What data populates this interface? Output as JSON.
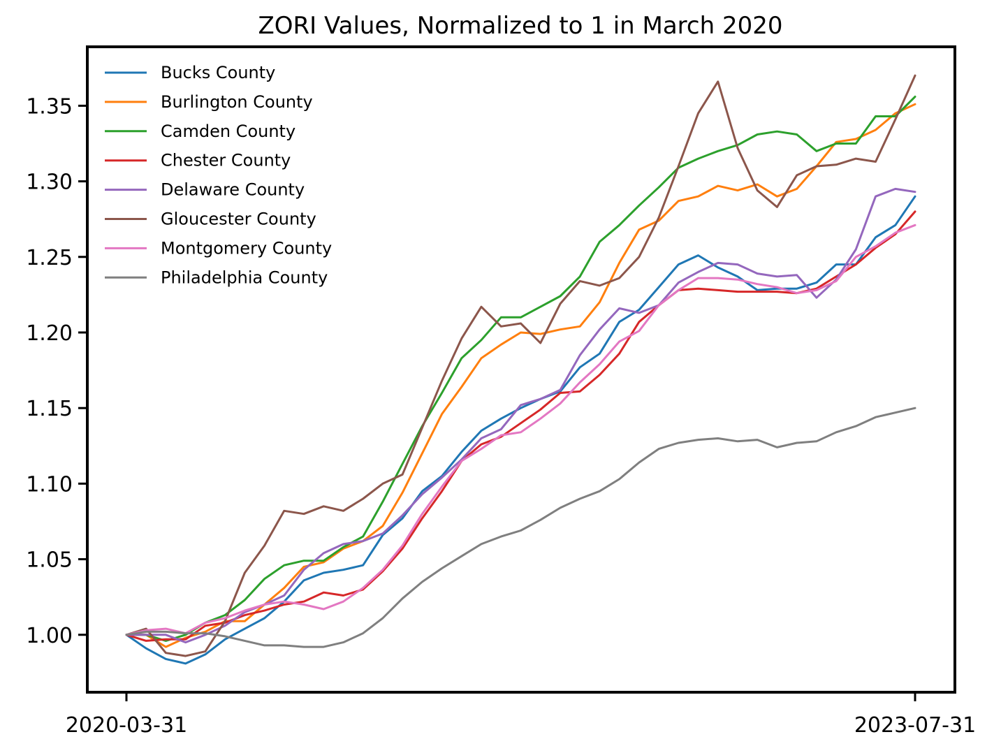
{
  "chart_data": {
    "type": "line",
    "title": "ZORI Values, Normalized to 1 in March 2020",
    "xlabel": "",
    "ylabel": "",
    "x_tick_labels": [
      "2020-03-31",
      "2023-07-31"
    ],
    "x_range": [
      "2020-03-31",
      "2023-07-31"
    ],
    "ylim": [
      0.962,
      1.389
    ],
    "y_ticks": [
      1.0,
      1.05,
      1.1,
      1.15,
      1.2,
      1.25,
      1.3,
      1.35
    ],
    "y_tick_labels": [
      "1.00",
      "1.05",
      "1.10",
      "1.15",
      "1.20",
      "1.25",
      "1.30",
      "1.35"
    ],
    "grid": false,
    "legend_position": "top-left",
    "x": [
      "2020-03-31",
      "2020-04-30",
      "2020-05-31",
      "2020-06-30",
      "2020-07-31",
      "2020-08-31",
      "2020-09-30",
      "2020-10-31",
      "2020-11-30",
      "2020-12-31",
      "2021-01-31",
      "2021-02-28",
      "2021-03-31",
      "2021-04-30",
      "2021-05-31",
      "2021-06-30",
      "2021-07-31",
      "2021-08-31",
      "2021-09-30",
      "2021-10-31",
      "2021-11-30",
      "2021-12-31",
      "2022-01-31",
      "2022-02-28",
      "2022-03-31",
      "2022-04-30",
      "2022-05-31",
      "2022-06-30",
      "2022-07-31",
      "2022-08-31",
      "2022-09-30",
      "2022-10-31",
      "2022-11-30",
      "2022-12-31",
      "2023-01-31",
      "2023-02-28",
      "2023-03-31",
      "2023-04-30",
      "2023-05-31",
      "2023-06-30",
      "2023-07-31"
    ],
    "series": [
      {
        "name": "Bucks County",
        "color": "#1f77b4",
        "values": [
          1.0,
          0.991,
          0.984,
          0.981,
          0.987,
          0.997,
          1.004,
          1.011,
          1.022,
          1.036,
          1.041,
          1.043,
          1.046,
          1.066,
          1.077,
          1.095,
          1.105,
          1.121,
          1.135,
          1.143,
          1.15,
          1.156,
          1.161,
          1.177,
          1.186,
          1.207,
          1.215,
          1.23,
          1.245,
          1.251,
          1.243,
          1.237,
          1.228,
          1.229,
          1.229,
          1.233,
          1.245,
          1.245,
          1.263,
          1.271,
          1.29
        ]
      },
      {
        "name": "Burlington County",
        "color": "#ff7f0e",
        "values": [
          1.0,
          1.0,
          0.992,
          0.998,
          1.002,
          1.009,
          1.009,
          1.02,
          1.031,
          1.045,
          1.048,
          1.057,
          1.062,
          1.072,
          1.094,
          1.12,
          1.146,
          1.164,
          1.183,
          1.192,
          1.2,
          1.199,
          1.202,
          1.204,
          1.22,
          1.246,
          1.268,
          1.274,
          1.287,
          1.29,
          1.297,
          1.294,
          1.298,
          1.29,
          1.295,
          1.31,
          1.326,
          1.328,
          1.334,
          1.345,
          1.351
        ]
      },
      {
        "name": "Camden County",
        "color": "#2ca02c",
        "values": [
          1.0,
          1.0,
          0.996,
          1.0,
          1.008,
          1.013,
          1.023,
          1.037,
          1.046,
          1.049,
          1.049,
          1.058,
          1.065,
          1.088,
          1.113,
          1.138,
          1.16,
          1.183,
          1.195,
          1.21,
          1.21,
          1.217,
          1.224,
          1.237,
          1.26,
          1.271,
          1.284,
          1.296,
          1.309,
          1.315,
          1.32,
          1.324,
          1.331,
          1.333,
          1.331,
          1.32,
          1.325,
          1.325,
          1.343,
          1.343,
          1.356
        ]
      },
      {
        "name": "Chester County",
        "color": "#d62728",
        "values": [
          1.0,
          0.996,
          0.997,
          0.997,
          1.006,
          1.008,
          1.013,
          1.016,
          1.02,
          1.022,
          1.028,
          1.026,
          1.03,
          1.042,
          1.057,
          1.077,
          1.095,
          1.115,
          1.126,
          1.131,
          1.14,
          1.149,
          1.16,
          1.161,
          1.172,
          1.186,
          1.207,
          1.218,
          1.228,
          1.229,
          1.228,
          1.227,
          1.227,
          1.227,
          1.226,
          1.229,
          1.237,
          1.245,
          1.256,
          1.265,
          1.28
        ]
      },
      {
        "name": "Delaware County",
        "color": "#9467bd",
        "values": [
          1.0,
          1.0,
          1.0,
          0.995,
          1.0,
          1.006,
          1.015,
          1.02,
          1.026,
          1.043,
          1.054,
          1.06,
          1.062,
          1.067,
          1.079,
          1.093,
          1.104,
          1.116,
          1.13,
          1.136,
          1.152,
          1.156,
          1.162,
          1.185,
          1.202,
          1.216,
          1.213,
          1.218,
          1.233,
          1.24,
          1.246,
          1.245,
          1.239,
          1.237,
          1.238,
          1.223,
          1.235,
          1.255,
          1.29,
          1.295,
          1.293
        ]
      },
      {
        "name": "Gloucester County",
        "color": "#8c564b",
        "values": [
          1.0,
          1.004,
          0.988,
          0.986,
          0.989,
          1.009,
          1.041,
          1.059,
          1.082,
          1.08,
          1.085,
          1.082,
          1.09,
          1.1,
          1.106,
          1.137,
          1.168,
          1.196,
          1.217,
          1.204,
          1.206,
          1.193,
          1.219,
          1.234,
          1.231,
          1.236,
          1.25,
          1.276,
          1.31,
          1.345,
          1.366,
          1.322,
          1.294,
          1.283,
          1.304,
          1.31,
          1.311,
          1.315,
          1.313,
          1.341,
          1.37
        ]
      },
      {
        "name": "Montgomery County",
        "color": "#e377c2",
        "values": [
          1.0,
          1.003,
          1.004,
          1.001,
          1.008,
          1.011,
          1.016,
          1.02,
          1.022,
          1.02,
          1.017,
          1.022,
          1.031,
          1.043,
          1.059,
          1.08,
          1.098,
          1.115,
          1.123,
          1.132,
          1.134,
          1.143,
          1.153,
          1.167,
          1.179,
          1.194,
          1.201,
          1.218,
          1.228,
          1.236,
          1.236,
          1.235,
          1.232,
          1.23,
          1.226,
          1.228,
          1.234,
          1.25,
          1.257,
          1.266,
          1.271
        ]
      },
      {
        "name": "Philadelphia County",
        "color": "#7f7f7f",
        "values": [
          1.0,
          1.002,
          1.002,
          1.001,
          1.001,
          0.999,
          0.996,
          0.993,
          0.993,
          0.992,
          0.992,
          0.995,
          1.001,
          1.011,
          1.024,
          1.035,
          1.044,
          1.052,
          1.06,
          1.065,
          1.069,
          1.076,
          1.084,
          1.09,
          1.095,
          1.103,
          1.114,
          1.123,
          1.127,
          1.129,
          1.13,
          1.128,
          1.129,
          1.124,
          1.127,
          1.128,
          1.134,
          1.138,
          1.144,
          1.147,
          1.15
        ]
      }
    ]
  }
}
